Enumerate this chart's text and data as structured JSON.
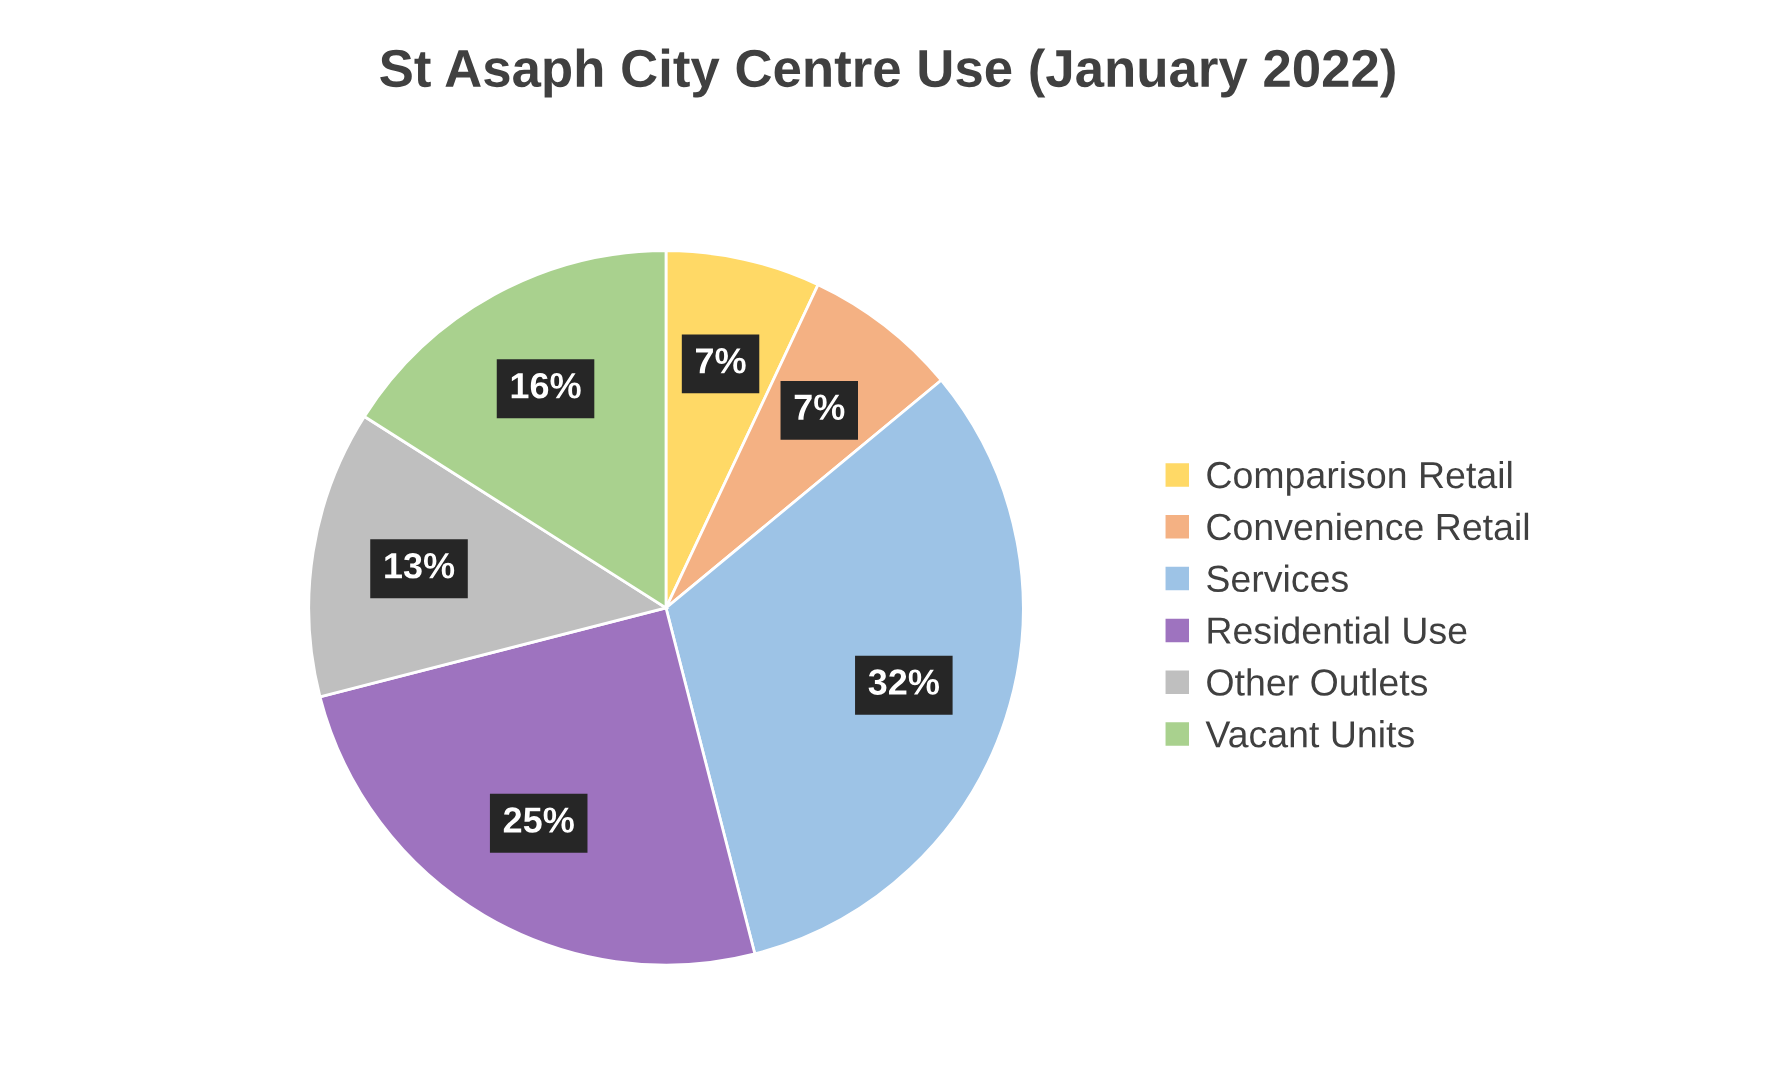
{
  "chart_data": {
    "type": "pie",
    "title": "St Asaph City Centre Use (January 2022)",
    "categories": [
      "Comparison Retail",
      "Convenience Retail",
      "Services",
      "Residential Use",
      "Other Outlets",
      "Vacant Units"
    ],
    "values": [
      7,
      7,
      32,
      25,
      13,
      16
    ],
    "colors": [
      "#ffd966",
      "#f4b183",
      "#9dc3e6",
      "#9e73bf",
      "#bfbfbf",
      "#a9d18e"
    ],
    "value_labels": [
      "7%",
      "7%",
      "32%",
      "25%",
      "13%",
      "16%"
    ],
    "legend": "right"
  }
}
